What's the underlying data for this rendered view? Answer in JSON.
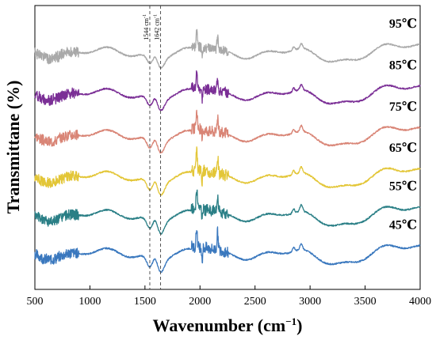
{
  "chart_data": {
    "type": "line",
    "xlabel": "Wavenumber (cm",
    "xlabel_sup": "−1",
    "xlabel_close": ")",
    "ylabel": "Transmittane (%)",
    "xlim": [
      500,
      4000
    ],
    "x_ticks": [
      500,
      1000,
      1500,
      2000,
      2500,
      3000,
      3500,
      4000
    ],
    "y_ticks_shown": false,
    "grid": false,
    "annotations": [
      {
        "text": "1544 cm",
        "sup": "-1",
        "x": 1544
      },
      {
        "text": "1642 cm",
        "sup": "-1",
        "x": 1642
      }
    ],
    "series": [
      {
        "name": "95℃",
        "color": "#a9a9a9",
        "baseline": 8.0,
        "amp": 0.55,
        "seed": 1
      },
      {
        "name": "85℃",
        "color": "#7b2f96",
        "baseline": 6.6,
        "amp": 0.6,
        "seed": 2
      },
      {
        "name": "75℃",
        "color": "#d98576",
        "baseline": 5.2,
        "amp": 0.65,
        "seed": 3
      },
      {
        "name": "65℃",
        "color": "#e3c637",
        "baseline": 3.8,
        "amp": 0.7,
        "seed": 4
      },
      {
        "name": "55℃",
        "color": "#2a7f86",
        "baseline": 2.5,
        "amp": 0.7,
        "seed": 5
      },
      {
        "name": "45℃",
        "color": "#3a78be",
        "baseline": 1.2,
        "amp": 0.7,
        "seed": 6
      }
    ],
    "ylim": [
      0,
      9.6
    ]
  }
}
